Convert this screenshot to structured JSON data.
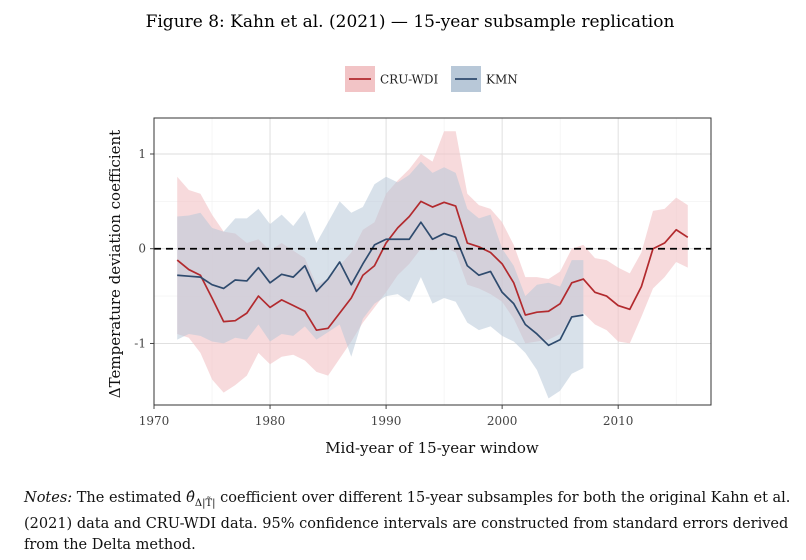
{
  "figure_title": "Figure 8: Kahn et al. (2021) — 15-year subsample replication",
  "colors": {
    "cru_line": "#b22a2e",
    "cru_band": "#f2c4c6",
    "kmn_line": "#2f4b6e",
    "kmn_band": "#b8c8d8"
  },
  "chart_data": {
    "type": "line",
    "title": "",
    "xlabel": "Mid-year of 15-year window",
    "ylabel": "ΔTemperature deviation coefficient",
    "xlim": [
      1970,
      2018
    ],
    "ylim": [
      -1.65,
      1.38
    ],
    "xticks": [
      1970,
      1980,
      1990,
      2000,
      2010
    ],
    "yticks": [
      -1,
      0,
      1
    ],
    "legend_position": "top",
    "reference_line": 0,
    "series": [
      {
        "name": "CRU-WDI",
        "x": [
          1972,
          1973,
          1974,
          1975,
          1976,
          1977,
          1978,
          1979,
          1980,
          1981,
          1982,
          1983,
          1984,
          1985,
          1986,
          1987,
          1988,
          1989,
          1990,
          1991,
          1992,
          1993,
          1994,
          1995,
          1996,
          1997,
          1998,
          1999,
          2000,
          2001,
          2002,
          2003,
          2004,
          2005,
          2006,
          2007,
          2008,
          2009,
          2010,
          2011,
          2012,
          2013,
          2014,
          2015,
          2016
        ],
        "values": [
          -0.12,
          -0.22,
          -0.28,
          -0.52,
          -0.77,
          -0.76,
          -0.68,
          -0.5,
          -0.62,
          -0.54,
          -0.6,
          -0.66,
          -0.86,
          -0.84,
          -0.68,
          -0.52,
          -0.28,
          -0.18,
          0.06,
          0.22,
          0.34,
          0.5,
          0.44,
          0.49,
          0.45,
          0.06,
          0.02,
          -0.04,
          -0.16,
          -0.36,
          -0.7,
          -0.67,
          -0.66,
          -0.58,
          -0.36,
          -0.32,
          -0.46,
          -0.5,
          -0.6,
          -0.64,
          -0.4,
          0.0,
          0.06,
          0.2,
          0.12
        ],
        "lower": [
          -0.9,
          -0.94,
          -1.1,
          -1.38,
          -1.52,
          -1.44,
          -1.34,
          -1.1,
          -1.22,
          -1.14,
          -1.12,
          -1.18,
          -1.3,
          -1.34,
          -1.16,
          -0.98,
          -0.78,
          -0.62,
          -0.46,
          -0.28,
          -0.16,
          0.0,
          -0.02,
          0.02,
          -0.04,
          -0.38,
          -0.42,
          -0.48,
          -0.56,
          -0.74,
          -1.0,
          -0.98,
          -0.96,
          -0.9,
          -0.72,
          -0.68,
          -0.8,
          -0.86,
          -0.98,
          -1.0,
          -0.72,
          -0.42,
          -0.3,
          -0.14,
          -0.2
        ],
        "upper": [
          0.76,
          0.62,
          0.58,
          0.36,
          0.18,
          0.16,
          0.06,
          0.1,
          -0.02,
          0.06,
          -0.02,
          -0.1,
          -0.38,
          -0.32,
          -0.18,
          -0.04,
          0.2,
          0.28,
          0.58,
          0.72,
          0.84,
          1.0,
          0.92,
          1.24,
          1.24,
          0.58,
          0.46,
          0.42,
          0.28,
          0.04,
          -0.3,
          -0.3,
          -0.32,
          -0.24,
          0.0,
          0.04,
          -0.1,
          -0.12,
          -0.2,
          -0.26,
          -0.04,
          0.4,
          0.42,
          0.54,
          0.46
        ]
      },
      {
        "name": "KMN",
        "x": [
          1972,
          1973,
          1974,
          1975,
          1976,
          1977,
          1978,
          1979,
          1980,
          1981,
          1982,
          1983,
          1984,
          1985,
          1986,
          1987,
          1988,
          1989,
          1990,
          1991,
          1992,
          1993,
          1994,
          1995,
          1996,
          1997,
          1998,
          1999,
          2000,
          2001,
          2002,
          2003,
          2004,
          2005,
          2006,
          2007
        ],
        "values": [
          -0.28,
          -0.29,
          -0.3,
          -0.38,
          -0.42,
          -0.33,
          -0.34,
          -0.2,
          -0.36,
          -0.27,
          -0.3,
          -0.18,
          -0.45,
          -0.32,
          -0.14,
          -0.38,
          -0.16,
          0.04,
          0.1,
          0.1,
          0.1,
          0.28,
          0.1,
          0.16,
          0.12,
          -0.18,
          -0.28,
          -0.24,
          -0.46,
          -0.58,
          -0.8,
          -0.9,
          -1.02,
          -0.96,
          -0.72,
          -0.7
        ],
        "lower": [
          -0.96,
          -0.9,
          -0.92,
          -0.98,
          -1.0,
          -0.94,
          -0.96,
          -0.8,
          -0.98,
          -0.9,
          -0.92,
          -0.82,
          -0.96,
          -0.88,
          -0.8,
          -1.14,
          -0.74,
          -0.58,
          -0.5,
          -0.48,
          -0.56,
          -0.3,
          -0.58,
          -0.52,
          -0.56,
          -0.78,
          -0.86,
          -0.82,
          -0.92,
          -0.98,
          -1.1,
          -1.28,
          -1.58,
          -1.5,
          -1.32,
          -1.26
        ],
        "upper": [
          0.34,
          0.35,
          0.38,
          0.22,
          0.18,
          0.32,
          0.32,
          0.42,
          0.26,
          0.36,
          0.24,
          0.4,
          0.06,
          0.28,
          0.5,
          0.38,
          0.44,
          0.68,
          0.76,
          0.7,
          0.78,
          0.92,
          0.8,
          0.86,
          0.8,
          0.42,
          0.32,
          0.36,
          0.0,
          -0.18,
          -0.5,
          -0.38,
          -0.36,
          -0.4,
          -0.12,
          -0.12
        ]
      }
    ]
  },
  "notes": {
    "label": "Notes:",
    "text_before": "The estimated",
    "symbol": "θ̂",
    "symbol_sub": "Δ|T̃|",
    "text_after": "coefficient over different 15-year subsamples for both the original Kahn et al. (2021) data and CRU-WDI data. 95% confidence intervals are constructed from standard errors derived from the Delta method."
  }
}
